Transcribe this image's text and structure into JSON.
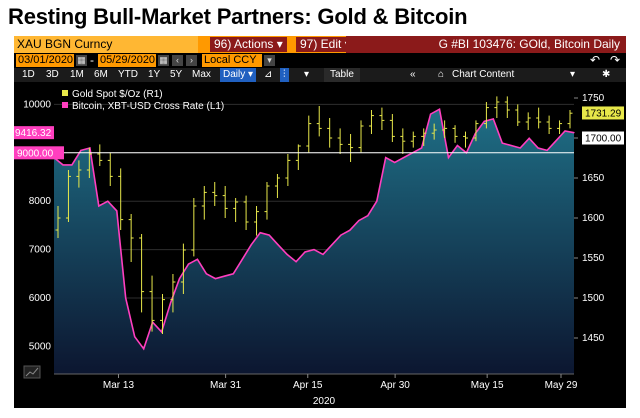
{
  "title": "Resting Bull-Market Partners: Gold & Bitcoin",
  "toolbar": {
    "ticker": "XAU BGN Curncy",
    "actions_label": "96) Actions ▾",
    "edit_label": "97) Edit ▾",
    "security_info": "G #BI 103476: GOld, Bitcoin Daily",
    "start_date": "03/01/2020",
    "end_date": "05/29/2020",
    "currency": "Local CCY",
    "periods": [
      "1D",
      "3D",
      "1M",
      "6M",
      "YTD",
      "1Y",
      "5Y",
      "Max"
    ],
    "frequency": "Daily ▾",
    "table_label": "Table",
    "chart_content_label": "Chart Content"
  },
  "chart_data": {
    "type": "line",
    "year_label": "2020",
    "x_tick_labels": [
      "Mar 13",
      "Mar 31",
      "Apr 15",
      "Apr 30",
      "May 15",
      "May 29"
    ],
    "left_axis": {
      "ticks": [
        5000,
        6000,
        7000,
        8000,
        9000,
        10000
      ],
      "range": [
        4430,
        10380
      ]
    },
    "right_axis": {
      "ticks": [
        1450,
        1500,
        1550,
        1600,
        1650,
        1700,
        1750
      ],
      "range": [
        1405,
        1765
      ]
    },
    "reference_level": 9000.0,
    "reference_label": "9000.00",
    "series": [
      {
        "name": "Gold Spot $/Oz (R1)",
        "axis": "right",
        "color": "#e8e84a",
        "style": "ohlc",
        "last_value": 1731.29,
        "last_label": "1731.29",
        "bars": [
          [
            1585,
            1615,
            1575,
            1600
          ],
          [
            1600,
            1660,
            1595,
            1652
          ],
          [
            1652,
            1672,
            1638,
            1660
          ],
          [
            1660,
            1688,
            1650,
            1680
          ],
          [
            1680,
            1692,
            1665,
            1672
          ],
          [
            1672,
            1682,
            1640,
            1652
          ],
          [
            1652,
            1662,
            1585,
            1598
          ],
          [
            1598,
            1605,
            1545,
            1575
          ],
          [
            1575,
            1580,
            1482,
            1508
          ],
          [
            1508,
            1528,
            1458,
            1472
          ],
          [
            1472,
            1505,
            1455,
            1498
          ],
          [
            1498,
            1530,
            1482,
            1520
          ],
          [
            1520,
            1568,
            1505,
            1560
          ],
          [
            1560,
            1625,
            1552,
            1615
          ],
          [
            1615,
            1640,
            1598,
            1632
          ],
          [
            1632,
            1645,
            1615,
            1628
          ],
          [
            1628,
            1640,
            1600,
            1612
          ],
          [
            1612,
            1625,
            1595,
            1620
          ],
          [
            1620,
            1628,
            1585,
            1595
          ],
          [
            1595,
            1615,
            1578,
            1608
          ],
          [
            1608,
            1645,
            1598,
            1640
          ],
          [
            1640,
            1655,
            1625,
            1650
          ],
          [
            1650,
            1680,
            1640,
            1672
          ],
          [
            1672,
            1692,
            1660,
            1690
          ],
          [
            1690,
            1728,
            1682,
            1718
          ],
          [
            1718,
            1740,
            1702,
            1712
          ],
          [
            1712,
            1725,
            1688,
            1700
          ],
          [
            1700,
            1712,
            1680,
            1692
          ],
          [
            1692,
            1705,
            1670,
            1688
          ],
          [
            1688,
            1722,
            1682,
            1715
          ],
          [
            1715,
            1735,
            1705,
            1728
          ],
          [
            1728,
            1738,
            1710,
            1722
          ],
          [
            1722,
            1730,
            1695,
            1702
          ],
          [
            1702,
            1712,
            1680,
            1696
          ],
          [
            1696,
            1708,
            1688,
            1702
          ],
          [
            1702,
            1712,
            1690,
            1706
          ],
          [
            1706,
            1718,
            1698,
            1710
          ],
          [
            1710,
            1722,
            1700,
            1712
          ],
          [
            1712,
            1716,
            1694,
            1702
          ],
          [
            1702,
            1708,
            1688,
            1700
          ],
          [
            1700,
            1722,
            1696,
            1718
          ],
          [
            1718,
            1745,
            1712,
            1738
          ],
          [
            1738,
            1752,
            1725,
            1745
          ],
          [
            1745,
            1752,
            1725,
            1735
          ],
          [
            1735,
            1742,
            1715,
            1720
          ],
          [
            1720,
            1732,
            1710,
            1725
          ],
          [
            1725,
            1738,
            1712,
            1720
          ],
          [
            1720,
            1728,
            1705,
            1712
          ],
          [
            1712,
            1722,
            1705,
            1718
          ],
          [
            1718,
            1735,
            1712,
            1731
          ]
        ]
      },
      {
        "name": "Bitcoin, XBT-USD Cross Rate (L1)",
        "axis": "left",
        "color": "#ff3fbf",
        "style": "area-line",
        "last_value": 9416.32,
        "last_label": "9416.32",
        "values": [
          8900,
          8750,
          8750,
          9050,
          9100,
          7900,
          8000,
          7800,
          6000,
          5200,
          4950,
          5500,
          5300,
          5900,
          6400,
          6700,
          6800,
          6500,
          6400,
          6450,
          6500,
          6800,
          7100,
          7350,
          7300,
          7100,
          6900,
          6750,
          6950,
          7000,
          6900,
          7100,
          7300,
          7400,
          7600,
          7700,
          8000,
          8900,
          8800,
          8900,
          9000,
          9100,
          9800,
          9900,
          8900,
          9150,
          9000,
          9400,
          9650,
          9700,
          9200,
          9150,
          9100,
          9300,
          9100,
          9050,
          9250,
          9450,
          9416
        ]
      }
    ]
  }
}
